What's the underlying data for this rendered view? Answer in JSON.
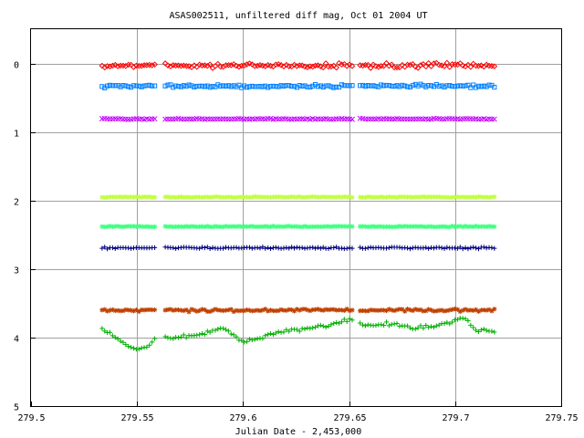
{
  "chart_data": {
    "type": "scatter",
    "title": "ASAS002511, unfiltered diff mag, Oct 01 2004 UT",
    "xlabel": "Julian Date - 2,453,000",
    "ylabel": "",
    "xlim": [
      279.5,
      279.75
    ],
    "ylim": [
      5,
      -0.5
    ],
    "y_inverted": true,
    "grid": true,
    "x_ticks": [
      "279.5",
      "279.55",
      "279.6",
      "279.65",
      "279.7",
      "279.75"
    ],
    "x_tick_values": [
      279.5,
      279.55,
      279.6,
      279.65,
      279.7,
      279.75
    ],
    "y_ticks": [
      "0",
      "1",
      "2",
      "3",
      "4",
      "5"
    ],
    "y_tick_values": [
      0,
      1,
      2,
      3,
      4,
      5
    ],
    "gaps": [
      [
        279.5585,
        279.5625
      ],
      [
        279.6525,
        279.6545
      ]
    ],
    "series": [
      {
        "color": "#ff0000",
        "marker": "diamond",
        "x_range": [
          279.5335,
          279.7185
        ],
        "mean": 0.03,
        "scatter": 0.05,
        "points": 150
      },
      {
        "color": "#0080ff",
        "marker": "square",
        "x_range": [
          279.5335,
          279.7185
        ],
        "mean": 0.33,
        "scatter": 0.03,
        "points": 150
      },
      {
        "color": "#c000ff",
        "marker": "x",
        "x_range": [
          279.5335,
          279.7185
        ],
        "mean": 0.81,
        "scatter": 0.01,
        "points": 150
      },
      {
        "color": "#c0ff40",
        "marker": "star",
        "x_range": [
          279.5335,
          279.7185
        ],
        "mean": 1.95,
        "scatter": 0.01,
        "points": 150
      },
      {
        "color": "#40ff80",
        "marker": "star",
        "x_range": [
          279.5335,
          279.7185
        ],
        "mean": 2.38,
        "scatter": 0.01,
        "points": 150
      },
      {
        "color": "#000080",
        "marker": "plus",
        "x_range": [
          279.5335,
          279.7185
        ],
        "mean": 2.69,
        "scatter": 0.02,
        "points": 150
      },
      {
        "color": "#c04000",
        "marker": "star",
        "x_range": [
          279.5335,
          279.7185
        ],
        "mean": 3.6,
        "scatter": 0.03,
        "points": 150
      },
      {
        "color": "#00b000",
        "marker": "plus",
        "x_range": [
          279.5335,
          279.7185
        ],
        "points": 150,
        "x": [
          279.534,
          279.545,
          279.55,
          279.555,
          279.56,
          279.565,
          279.58,
          279.59,
          279.6,
          279.61,
          279.62,
          279.63,
          279.64,
          279.65,
          279.66,
          279.67,
          279.68,
          279.69,
          279.7,
          279.705,
          279.71,
          279.718
        ],
        "y": [
          3.88,
          4.12,
          4.18,
          4.12,
          4.0,
          4.0,
          3.96,
          3.86,
          4.07,
          3.98,
          3.9,
          3.87,
          3.82,
          3.74,
          3.83,
          3.8,
          3.86,
          3.83,
          3.76,
          3.72,
          3.88,
          3.92
        ],
        "scatter": 0.04
      }
    ]
  }
}
